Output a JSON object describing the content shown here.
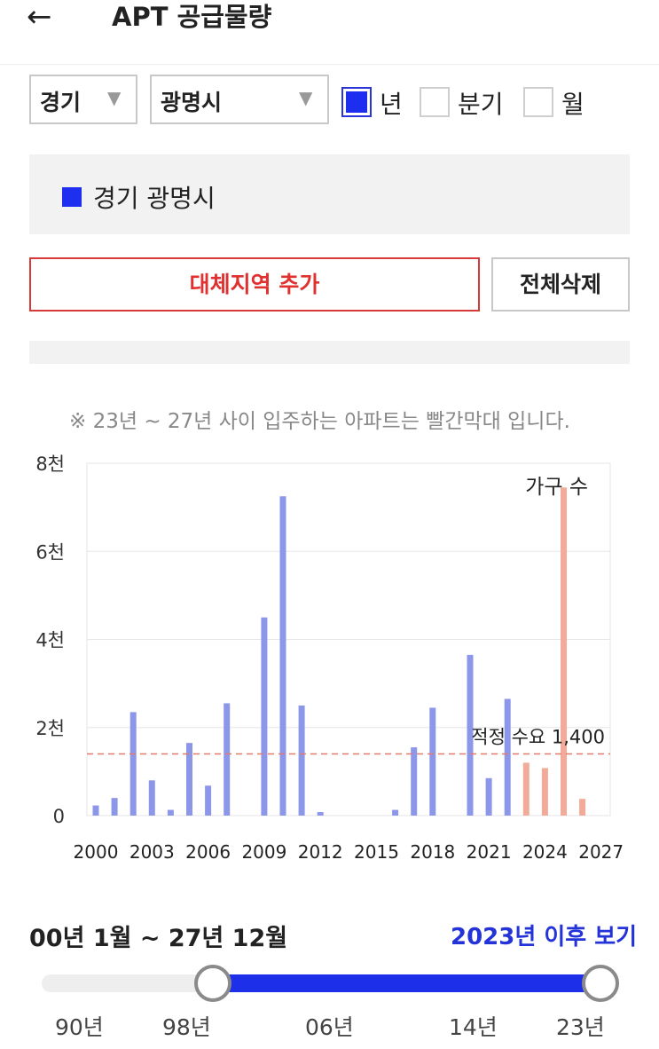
{
  "header": {
    "back_icon": "←",
    "title": "APT 공급물량"
  },
  "filters": {
    "province": "경기",
    "city": "광명시",
    "periods": [
      {
        "label": "년",
        "checked": true
      },
      {
        "label": "분기",
        "checked": false
      },
      {
        "label": "월",
        "checked": false
      }
    ]
  },
  "legend": {
    "label": "경기 광명시",
    "color": "#1f2ff0"
  },
  "buttons": {
    "add_region": "대체지역 추가",
    "delete_all": "전체삭제"
  },
  "note": "※ 23년 ~ 27년 사이 입주하는 아파트는 빨간막대 입니다.",
  "chart_data": {
    "type": "bar",
    "categories": [
      "2000",
      "2001",
      "2002",
      "2003",
      "2004",
      "2005",
      "2006",
      "2007",
      "2008",
      "2009",
      "2010",
      "2011",
      "2012",
      "2013",
      "2014",
      "2015",
      "2016",
      "2017",
      "2018",
      "2019",
      "2020",
      "2021",
      "2022",
      "2023",
      "2024",
      "2025",
      "2026",
      "2027"
    ],
    "values": [
      230,
      400,
      2350,
      800,
      130,
      1650,
      680,
      2550,
      0,
      4500,
      7250,
      2500,
      80,
      0,
      0,
      0,
      130,
      1550,
      2450,
      0,
      3650,
      850,
      2650,
      1200,
      1080,
      7450,
      380,
      0
    ],
    "future_from": "2023",
    "colors": {
      "past": "#8c97ea",
      "future": "#f2ab98",
      "demand_line": "#e07a6a"
    },
    "ylim": [
      0,
      8000
    ],
    "y_ticks": [
      {
        "value": 0,
        "label": "0"
      },
      {
        "value": 2000,
        "label": "2천"
      },
      {
        "value": 4000,
        "label": "4천"
      },
      {
        "value": 6000,
        "label": "6천"
      },
      {
        "value": 8000,
        "label": "8천"
      }
    ],
    "x_ticks": [
      "2000",
      "2003",
      "2006",
      "2009",
      "2012",
      "2015",
      "2018",
      "2021",
      "2024",
      "2027"
    ],
    "series_label": "가구 수",
    "demand": {
      "value": 1400,
      "label": "적정 수요 1,400"
    },
    "grid": true
  },
  "range": {
    "label": "00년 1월 ~ 27년 12월",
    "after_link": "2023년 이후 보기",
    "ticks": [
      "90년",
      "98년",
      "06년",
      "14년",
      "23년"
    ]
  }
}
